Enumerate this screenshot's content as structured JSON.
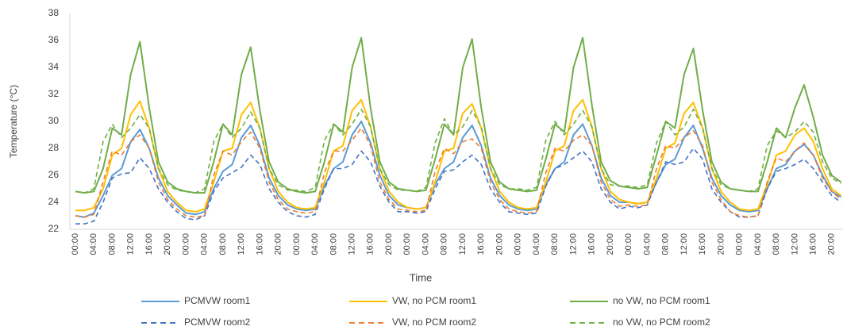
{
  "chart_data": {
    "type": "line",
    "y_label": "Temperature (°C)",
    "x_label": "Time",
    "ylim": [
      22,
      38
    ],
    "yticks": [
      22,
      24,
      26,
      28,
      30,
      32,
      34,
      36,
      38
    ],
    "grid": false,
    "categories": [
      "00:00",
      null,
      "04:00",
      null,
      "08:00",
      null,
      "12:00",
      null,
      "16:00",
      null,
      "20:00",
      null,
      "00:00",
      null,
      "04:00",
      null,
      "08:00",
      null,
      "12:00",
      null,
      "16:00",
      null,
      "20:00",
      null,
      "00:00",
      null,
      "04:00",
      null,
      "08:00",
      null,
      "12:00",
      null,
      "16:00",
      null,
      "20:00",
      null,
      "00:00",
      null,
      "04:00",
      null,
      "08:00",
      null,
      "12:00",
      null,
      "16:00",
      null,
      "20:00",
      null,
      "00:00",
      null,
      "04:00",
      null,
      "08:00",
      null,
      "12:00",
      null,
      "16:00",
      null,
      "20:00",
      null,
      "00:00",
      null,
      "04:00",
      null,
      "08:00",
      null,
      "12:00",
      null,
      "16:00",
      null,
      "20:00",
      null,
      "00:00",
      null,
      "04:00",
      null,
      "08:00",
      null,
      "12:00",
      null,
      "16:00",
      null,
      "20:00",
      null
    ],
    "series": [
      {
        "name": "PCMVW room1",
        "color": "#5b9bd5",
        "dashed": false,
        "values": [
          23.0,
          22.9,
          23.2,
          24.5,
          26.0,
          26.5,
          28.5,
          29.4,
          28.0,
          25.8,
          24.5,
          23.8,
          23.2,
          23.1,
          23.3,
          25.0,
          26.3,
          26.8,
          28.8,
          29.7,
          28.2,
          25.8,
          24.5,
          23.8,
          23.5,
          23.4,
          23.5,
          25.2,
          26.5,
          27.0,
          29.0,
          30.0,
          28.4,
          26.0,
          24.5,
          23.8,
          23.6,
          23.5,
          23.6,
          25.3,
          26.5,
          27.0,
          28.8,
          29.7,
          28.2,
          25.8,
          24.5,
          23.8,
          23.5,
          23.4,
          23.5,
          25.3,
          26.5,
          27.0,
          29.0,
          29.8,
          28.2,
          25.8,
          24.5,
          24.0,
          24.0,
          23.9,
          24.0,
          25.5,
          26.8,
          27.2,
          28.8,
          29.7,
          28.0,
          25.8,
          24.5,
          23.8,
          23.4,
          23.3,
          23.4,
          25.0,
          26.5,
          26.8,
          27.8,
          28.3,
          27.5,
          26.0,
          24.8,
          24.4
        ]
      },
      {
        "name": "VW, no PCM room1",
        "color": "#ffc000",
        "dashed": false,
        "values": [
          23.4,
          23.4,
          23.6,
          25.0,
          27.5,
          28.0,
          30.5,
          31.5,
          29.5,
          26.5,
          24.8,
          24.0,
          23.4,
          23.3,
          23.5,
          25.5,
          27.8,
          28.0,
          30.5,
          31.4,
          29.5,
          26.5,
          24.8,
          24.0,
          23.6,
          23.5,
          23.6,
          25.5,
          27.8,
          28.2,
          30.8,
          31.6,
          29.6,
          26.5,
          24.8,
          24.0,
          23.6,
          23.5,
          23.6,
          25.5,
          27.8,
          28.0,
          30.6,
          31.3,
          29.5,
          26.5,
          24.8,
          24.0,
          23.6,
          23.5,
          23.6,
          25.5,
          27.8,
          28.2,
          30.8,
          31.6,
          29.6,
          26.5,
          24.8,
          24.2,
          24.0,
          23.9,
          24.0,
          25.8,
          28.0,
          28.4,
          30.6,
          31.4,
          29.5,
          26.5,
          24.8,
          24.0,
          23.5,
          23.4,
          23.5,
          25.3,
          27.5,
          27.8,
          29.0,
          29.5,
          28.5,
          26.5,
          25.0,
          24.5
        ]
      },
      {
        "name": "no VW, no PCM room1",
        "color": "#70ad47",
        "dashed": false,
        "values": [
          24.8,
          24.7,
          24.8,
          26.5,
          29.5,
          29.0,
          33.5,
          35.9,
          31.0,
          27.0,
          25.5,
          25.0,
          24.8,
          24.7,
          24.7,
          27.0,
          29.8,
          29.0,
          33.5,
          35.5,
          30.8,
          27.0,
          25.5,
          25.0,
          24.8,
          24.7,
          24.8,
          27.0,
          29.8,
          29.2,
          34.0,
          36.2,
          31.0,
          27.0,
          25.5,
          25.0,
          24.9,
          24.8,
          24.9,
          27.2,
          29.8,
          29.0,
          34.0,
          36.1,
          31.0,
          27.0,
          25.5,
          25.0,
          24.9,
          24.8,
          24.9,
          27.2,
          29.8,
          29.2,
          34.0,
          36.2,
          31.2,
          27.0,
          25.6,
          25.2,
          25.1,
          25.0,
          25.1,
          27.5,
          30.0,
          29.5,
          33.5,
          35.4,
          30.8,
          27.0,
          25.5,
          25.0,
          24.9,
          24.8,
          24.8,
          27.0,
          29.5,
          28.8,
          31.0,
          32.7,
          30.3,
          27.5,
          26.0,
          25.5
        ]
      },
      {
        "name": "PCMVW room2",
        "color": "#4472c4",
        "dashed": true,
        "values": [
          22.4,
          22.4,
          22.6,
          24.0,
          25.8,
          26.1,
          26.2,
          27.3,
          26.5,
          25.0,
          24.0,
          23.3,
          22.8,
          22.7,
          23.0,
          24.8,
          25.8,
          26.2,
          26.6,
          27.5,
          26.8,
          25.0,
          24.0,
          23.3,
          23.0,
          22.9,
          23.1,
          25.0,
          26.5,
          26.5,
          26.8,
          27.8,
          27.0,
          25.2,
          24.0,
          23.3,
          23.3,
          23.2,
          23.3,
          25.0,
          26.3,
          26.4,
          27.0,
          27.5,
          26.8,
          25.0,
          24.0,
          23.3,
          23.2,
          23.1,
          23.2,
          25.2,
          26.5,
          26.8,
          27.3,
          27.8,
          27.0,
          25.0,
          24.0,
          23.5,
          23.7,
          23.6,
          23.8,
          25.5,
          27.0,
          26.8,
          27.0,
          28.0,
          27.2,
          25.0,
          24.0,
          23.3,
          22.9,
          22.9,
          23.0,
          25.0,
          26.3,
          26.5,
          26.8,
          27.2,
          26.5,
          25.5,
          24.5,
          24.0
        ]
      },
      {
        "name": "VW, no PCM room2",
        "color": "#ed7d31",
        "dashed": true,
        "values": [
          23.0,
          22.9,
          23.1,
          25.5,
          27.8,
          27.5,
          28.5,
          29.0,
          28.0,
          25.5,
          24.2,
          23.5,
          23.0,
          22.9,
          23.0,
          26.0,
          27.8,
          27.5,
          28.5,
          29.2,
          28.0,
          25.5,
          24.2,
          23.5,
          23.3,
          23.2,
          23.3,
          26.2,
          27.8,
          27.8,
          28.6,
          29.5,
          28.2,
          25.5,
          24.2,
          23.5,
          23.4,
          23.3,
          23.4,
          26.3,
          28.0,
          27.6,
          28.5,
          28.7,
          28.0,
          25.5,
          24.2,
          23.5,
          23.3,
          23.2,
          23.3,
          26.2,
          28.0,
          27.8,
          28.6,
          29.0,
          28.2,
          25.5,
          24.2,
          23.7,
          23.8,
          23.7,
          23.8,
          26.5,
          28.2,
          28.0,
          28.8,
          29.3,
          28.2,
          25.5,
          24.2,
          23.3,
          23.0,
          22.9,
          23.0,
          25.5,
          27.3,
          27.0,
          27.8,
          28.4,
          27.5,
          25.8,
          24.8,
          24.2
        ]
      },
      {
        "name": "no VW, no PCM room2",
        "color": "#70ad47",
        "dashed": true,
        "values": [
          24.8,
          24.7,
          25.0,
          28.5,
          29.8,
          28.8,
          29.5,
          30.5,
          29.5,
          26.5,
          25.3,
          24.9,
          24.8,
          24.7,
          25.0,
          28.5,
          29.8,
          28.8,
          29.5,
          30.7,
          29.5,
          26.5,
          25.3,
          24.9,
          24.9,
          24.8,
          25.1,
          28.6,
          29.8,
          29.0,
          29.8,
          30.9,
          29.6,
          26.5,
          25.3,
          24.9,
          24.9,
          24.8,
          25.1,
          28.4,
          30.2,
          29.0,
          29.6,
          30.8,
          29.6,
          26.5,
          25.3,
          25.0,
          25.0,
          24.9,
          25.1,
          28.6,
          30.0,
          29.0,
          29.8,
          30.8,
          29.6,
          26.5,
          25.3,
          25.2,
          25.2,
          25.1,
          25.3,
          28.4,
          30.0,
          29.0,
          29.6,
          30.9,
          29.5,
          26.5,
          25.3,
          25.0,
          24.9,
          24.8,
          25.0,
          28.2,
          29.3,
          28.8,
          29.2,
          30.0,
          29.2,
          27.0,
          25.8,
          25.4
        ]
      }
    ]
  }
}
